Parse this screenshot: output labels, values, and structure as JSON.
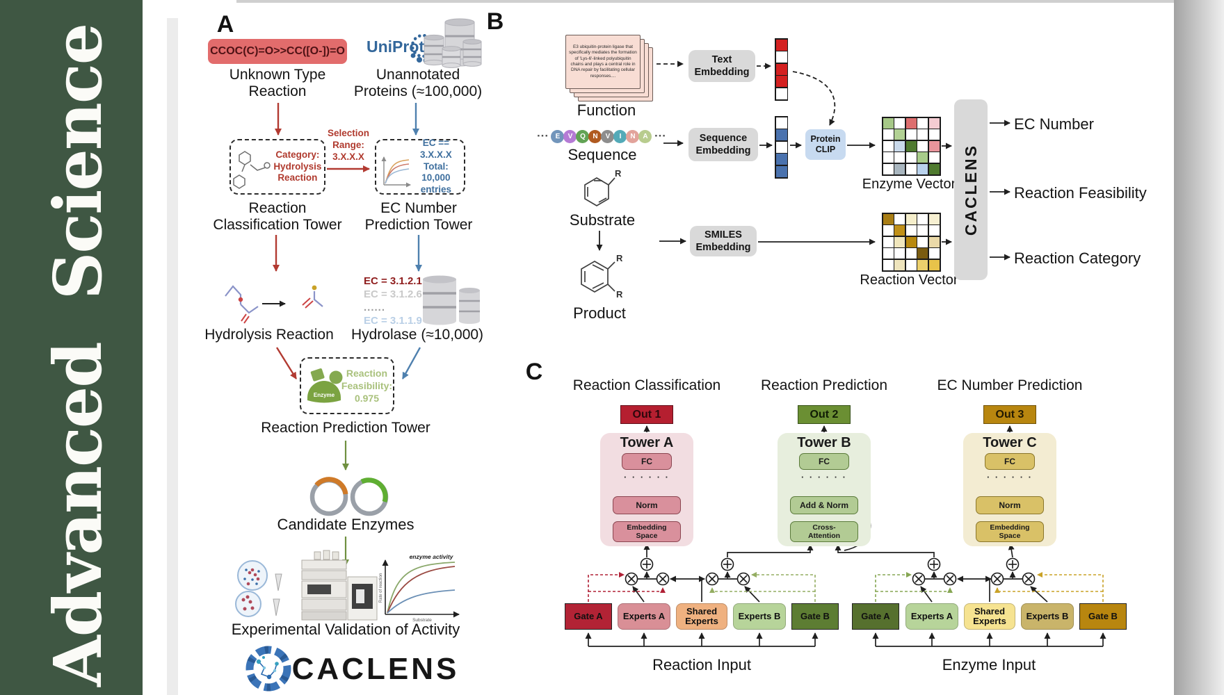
{
  "sidebar": {
    "title": "Advanced  Science",
    "background": "#3f5743"
  },
  "panel_a": {
    "label": "A",
    "smiles": "CCOC(C)=O>>CC([O-])=O",
    "unknown_reaction": "Unknown Type\nReaction",
    "uniprot": "UniProt",
    "unannotated": "Unannotated\nProteins (≈100,000)",
    "category_box": "Category:\nHydrolysis\nReaction",
    "selection_range": "Selection\nRange:\n3.X.X.X",
    "ec_range_box": "EC == 3.X.X.X\nTotal: 10,000\nentries",
    "classification_tower": "Reaction\nClassification Tower",
    "ec_tower": "EC Number\nPrediction Tower",
    "ec_list": [
      "EC = 3.1.2.1",
      "EC = 3.1.2.6",
      "......",
      "EC = 3.1.1.9"
    ],
    "hydrolysis": "Hydrolysis Reaction",
    "hydrolase": "Hydrolase (≈10,000)",
    "enzyme_badge": "Enzyme",
    "feasibility": "Reaction\nFeasibility:\n0.975",
    "prediction_tower": "Reaction Prediction Tower",
    "candidate_enzymes": "Candidate Enzymes",
    "validation": "Experimental Validation of Activity",
    "activity_plot": {
      "note": "enzyme activity",
      "ylabel": "Rate of reaction",
      "xlabel": "Substrate"
    },
    "brand": "CACLENS"
  },
  "panel_b": {
    "label": "B",
    "function_card": "E3 ubiquitin-protein ligase that specifically mediates the formation of 'Lys-6'-linked polyubiquitin chains and plays a central role in DNA repair by facilitating cellular responses....",
    "function": "Function",
    "ellipsis": "···",
    "sequence": "Sequence",
    "substrate": "Substrate",
    "product": "Product",
    "r_group": "R",
    "text_embedding": "Text\nEmbedding",
    "sequence_embedding": "Sequence\nEmbedding",
    "smiles_embedding": "SMILES\nEmbedding",
    "protein_clip": "Protein\nCLIP",
    "enzyme_vector": "Enzyme Vector",
    "reaction_vector": "Reaction Vector",
    "caclens": "CACLENS",
    "outputs": [
      "EC Number",
      "Reaction Feasibility",
      "Reaction Category"
    ],
    "sequence_tokens": [
      {
        "letter": "E",
        "color": "#7295bb"
      },
      {
        "letter": "V",
        "color": "#b57bd5"
      },
      {
        "letter": "Q",
        "color": "#62a355"
      },
      {
        "letter": "N",
        "color": "#b05a1f"
      },
      {
        "letter": "V",
        "color": "#8d8d8d"
      },
      {
        "letter": "I",
        "color": "#53aab8"
      },
      {
        "letter": "N",
        "color": "#e2a39b"
      },
      {
        "letter": "A",
        "color": "#b8cc8e"
      }
    ],
    "text_vector_cells": [
      "#d42020",
      "#ffffff",
      "#d42020",
      "#d42020",
      "#ffffff"
    ],
    "sequence_vector_cells": [
      "#ffffff",
      "#4a72ae",
      "#ffffff",
      "#4a72ae",
      "#4a72ae"
    ],
    "enzyme_matrix": [
      [
        "#a6c887",
        "#ffffff",
        "#dd6e6e",
        "#ffffff",
        "#f4ccd2"
      ],
      [
        "#ffffff",
        "#b2d194",
        "#ffffff",
        "#ffffff",
        "#ffffff"
      ],
      [
        "#ffffff",
        "#c9d9ea",
        "#4f7a2f",
        "#ffffff",
        "#e9949b"
      ],
      [
        "#ffffff",
        "#ffffff",
        "#ffffff",
        "#a8cc8a",
        "#ffffff"
      ],
      [
        "#ffffff",
        "#a9b6bf",
        "#ffffff",
        "#b9d2ec",
        "#4f7a2f"
      ]
    ],
    "reaction_matrix": [
      [
        "#a87d14",
        "#ffffff",
        "#f5eecb",
        "#ffffff",
        "#f7f0d2"
      ],
      [
        "#ffffff",
        "#c09018",
        "#ffffff",
        "#ffffff",
        "#ffffff"
      ],
      [
        "#ffffff",
        "#f0e6bc",
        "#b8890f",
        "#ffffff",
        "#ead9a8"
      ],
      [
        "#ffffff",
        "#ffffff",
        "#ffffff",
        "#7a5c10",
        "#ffffff"
      ],
      [
        "#ffffff",
        "#eee4bc",
        "#ffffff",
        "#ecd06c",
        "#e8c34a"
      ]
    ]
  },
  "panel_c": {
    "label": "C",
    "headings": [
      "Reaction Classification",
      "Reaction Prediction",
      "EC Number Prediction"
    ],
    "outs": [
      "Out 1",
      "Out 2",
      "Out 3"
    ],
    "towers": [
      {
        "title": "Tower A",
        "fc": "FC",
        "dots": "· · · · · ·",
        "mid": "Norm",
        "bottom": "Embedding\nSpace"
      },
      {
        "title": "Tower B",
        "fc": "FC",
        "dots": "· · · · · ·",
        "mid": "Add & Norm",
        "bottom": "Cross-\nAttention"
      },
      {
        "title": "Tower C",
        "fc": "FC",
        "dots": "· · · · · ·",
        "mid": "Norm",
        "bottom": "Embedding\nSpace"
      }
    ],
    "moe_groups": [
      {
        "gate_a": "Gate A",
        "experts_a": "Experts A",
        "shared": "Shared\nExperts",
        "experts_b": "Experts B",
        "gate_b": "Gate B",
        "input": "Reaction Input"
      },
      {
        "gate_a": "Gate A",
        "experts_a": "Experts A",
        "shared": "Shared\nExperts",
        "experts_b": "Experts B",
        "gate_b": "Gate B",
        "input": "Enzyme Input"
      }
    ]
  }
}
